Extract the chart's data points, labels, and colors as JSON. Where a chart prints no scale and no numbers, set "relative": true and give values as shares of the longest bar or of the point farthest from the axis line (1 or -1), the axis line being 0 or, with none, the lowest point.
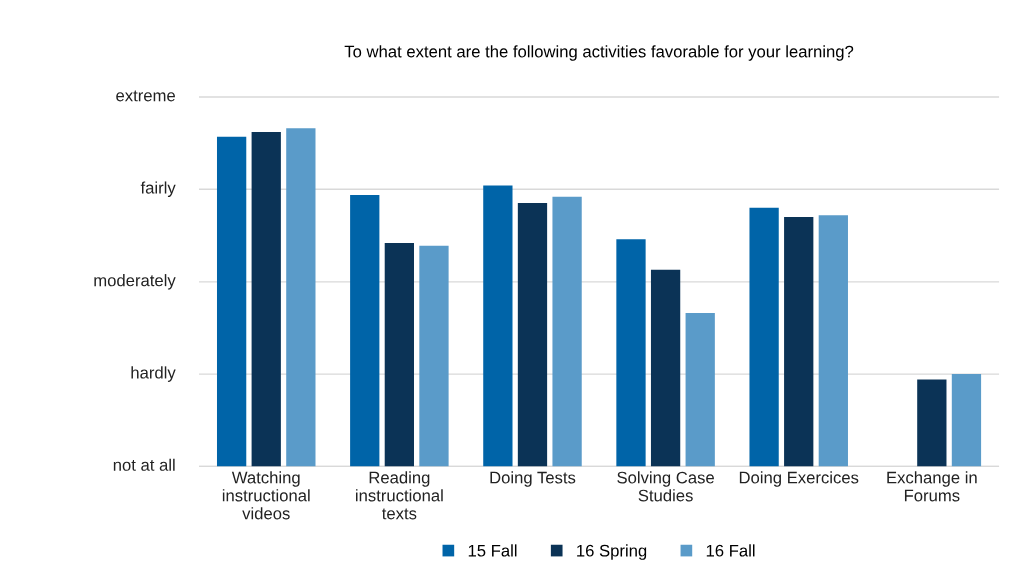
{
  "chart_data": {
    "type": "bar",
    "title": "To what extent are the following activities favorable for your learning?",
    "categories": [
      "Watching\ninstructional\nvideos",
      "Reading\ninstructional\ntexts",
      "Doing Tests",
      "Solving Case\nStudies",
      "Doing Exercices",
      "Exchange in\nForums"
    ],
    "relative": true,
    "series": [
      {
        "name": "15 Fall",
        "color": "#0064a8",
        "values": [
          0.975,
          0.803,
          0.831,
          0.672,
          0.765,
          null
        ]
      },
      {
        "name": "16 Spring",
        "color": "#0b3356",
        "values": [
          0.989,
          0.661,
          0.779,
          0.582,
          0.738,
          0.257
        ]
      },
      {
        "name": "16 Fall",
        "color": "#5a9bc9",
        "values": [
          1,
          0.653,
          0.798,
          0.454,
          0.743,
          0.273
        ]
      }
    ],
    "ref_lines": [
      {
        "axis": "y",
        "value": 0,
        "label": "not at all",
        "color": "#d9d9d9"
      },
      {
        "axis": "y",
        "value": 0.273,
        "label": "hardly",
        "color": "#d9d9d9"
      },
      {
        "axis": "y",
        "value": 0.546,
        "label": "moderately",
        "color": "#d9d9d9"
      },
      {
        "axis": "y",
        "value": 0.82,
        "label": "fairly",
        "color": "#d9d9d9"
      },
      {
        "axis": "y",
        "value": 1.093,
        "label": "extreme",
        "color": "#d9d9d9"
      }
    ],
    "legend": "bottom"
  }
}
